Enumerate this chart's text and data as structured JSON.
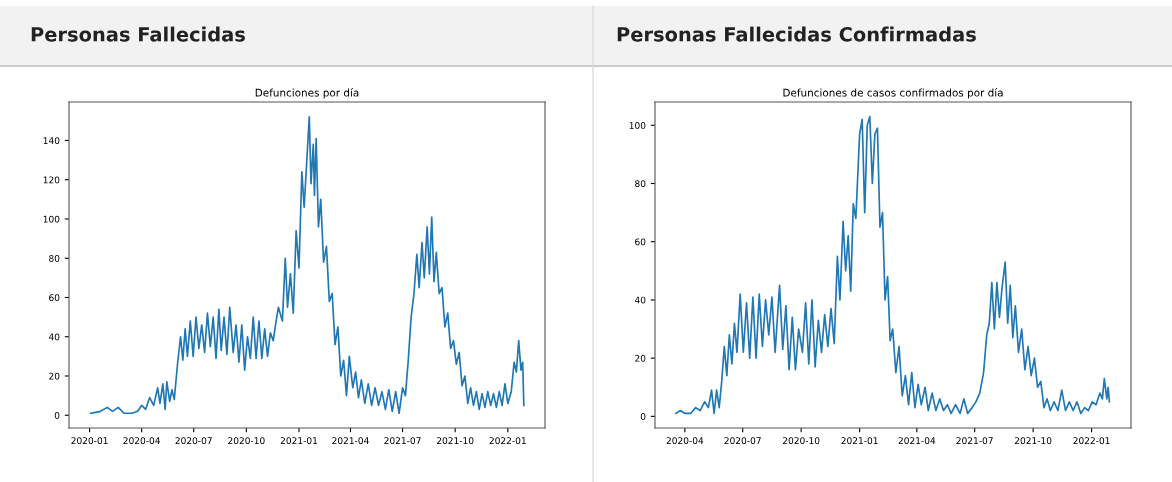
{
  "chart_data": [
    {
      "type": "line",
      "title": "Personas Fallecidas",
      "subtitle": "Defunciones por día",
      "grid": false,
      "marker": "none",
      "line_style": "solid",
      "xlim": [
        "2019-11-26",
        "2022-03-07"
      ],
      "ylim": [
        -6.5,
        159.6
      ],
      "xticks": [
        {
          "value": "2020-01-01",
          "label": "2020-01"
        },
        {
          "value": "2020-04-01",
          "label": "2020-04"
        },
        {
          "value": "2020-07-01",
          "label": "2020-07"
        },
        {
          "value": "2020-10-01",
          "label": "2020-10"
        },
        {
          "value": "2021-01-01",
          "label": "2021-01"
        },
        {
          "value": "2021-04-01",
          "label": "2021-04"
        },
        {
          "value": "2021-07-01",
          "label": "2021-07"
        },
        {
          "value": "2021-10-01",
          "label": "2021-10"
        },
        {
          "value": "2022-01-01",
          "label": "2022-01"
        }
      ],
      "yticks": [
        0,
        20,
        40,
        60,
        80,
        100,
        120,
        140
      ],
      "series": [
        {
          "color": "#1f77b4",
          "x": [
            "2020-01-03",
            "2020-01-20",
            "2020-02-01",
            "2020-02-10",
            "2020-02-20",
            "2020-03-01",
            "2020-03-15",
            "2020-03-25",
            "2020-04-01",
            "2020-04-08",
            "2020-04-15",
            "2020-04-22",
            "2020-04-29",
            "2020-05-03",
            "2020-05-08",
            "2020-05-12",
            "2020-05-15",
            "2020-05-20",
            "2020-05-24",
            "2020-05-28",
            "2020-06-03",
            "2020-06-08",
            "2020-06-12",
            "2020-06-16",
            "2020-06-20",
            "2020-06-25",
            "2020-06-30",
            "2020-07-05",
            "2020-07-10",
            "2020-07-15",
            "2020-07-20",
            "2020-07-25",
            "2020-07-30",
            "2020-08-04",
            "2020-08-09",
            "2020-08-14",
            "2020-08-18",
            "2020-08-23",
            "2020-08-28",
            "2020-09-02",
            "2020-09-08",
            "2020-09-13",
            "2020-09-18",
            "2020-09-23",
            "2020-09-28",
            "2020-10-03",
            "2020-10-08",
            "2020-10-13",
            "2020-10-18",
            "2020-10-23",
            "2020-10-28",
            "2020-11-02",
            "2020-11-07",
            "2020-11-12",
            "2020-11-17",
            "2020-11-22",
            "2020-11-26",
            "2020-12-03",
            "2020-12-08",
            "2020-12-12",
            "2020-12-17",
            "2020-12-22",
            "2020-12-27",
            "2021-01-01",
            "2021-01-06",
            "2021-01-10",
            "2021-01-19",
            "2021-01-22",
            "2021-01-26",
            "2021-01-28",
            "2021-01-31",
            "2021-02-04",
            "2021-02-08",
            "2021-02-13",
            "2021-02-18",
            "2021-02-23",
            "2021-02-28",
            "2021-03-05",
            "2021-03-10",
            "2021-03-15",
            "2021-03-20",
            "2021-03-25",
            "2021-03-30",
            "2021-04-05",
            "2021-04-10",
            "2021-04-15",
            "2021-04-20",
            "2021-04-26",
            "2021-05-02",
            "2021-05-08",
            "2021-05-14",
            "2021-05-20",
            "2021-05-26",
            "2021-06-01",
            "2021-06-07",
            "2021-06-13",
            "2021-06-19",
            "2021-06-25",
            "2021-07-01",
            "2021-07-06",
            "2021-07-11",
            "2021-07-16",
            "2021-07-21",
            "2021-07-26",
            "2021-07-30",
            "2021-08-04",
            "2021-08-08",
            "2021-08-13",
            "2021-08-17",
            "2021-08-21",
            "2021-08-25",
            "2021-08-29",
            "2021-09-03",
            "2021-09-08",
            "2021-09-13",
            "2021-09-18",
            "2021-09-23",
            "2021-09-28",
            "2021-10-03",
            "2021-10-08",
            "2021-10-13",
            "2021-10-18",
            "2021-10-23",
            "2021-10-28",
            "2021-11-02",
            "2021-11-07",
            "2021-11-12",
            "2021-11-17",
            "2021-11-22",
            "2021-11-27",
            "2021-12-02",
            "2021-12-07",
            "2021-12-12",
            "2021-12-17",
            "2021-12-22",
            "2021-12-27",
            "2022-01-01",
            "2022-01-07",
            "2022-01-12",
            "2022-01-16",
            "2022-01-20",
            "2022-01-24",
            "2022-01-27",
            "2022-01-29"
          ],
          "values": [
            1,
            2,
            4,
            2,
            4,
            1,
            1,
            2,
            5,
            3,
            9,
            5,
            14,
            6,
            16,
            3,
            17,
            7,
            13,
            8,
            27,
            40,
            28,
            44,
            30,
            48,
            30,
            50,
            34,
            46,
            32,
            52,
            35,
            50,
            29,
            54,
            33,
            50,
            31,
            55,
            32,
            46,
            27,
            46,
            23,
            40,
            29,
            50,
            29,
            48,
            29,
            44,
            30,
            42,
            38,
            48,
            55,
            48,
            80,
            55,
            72,
            52,
            94,
            75,
            124,
            106,
            152,
            118,
            138,
            112,
            141,
            96,
            110,
            78,
            86,
            58,
            62,
            36,
            45,
            20,
            28,
            10,
            30,
            14,
            22,
            9,
            18,
            6,
            16,
            5,
            14,
            5,
            12,
            3,
            13,
            2,
            12,
            1,
            14,
            10,
            28,
            50,
            62,
            82,
            65,
            88,
            70,
            96,
            72,
            101,
            68,
            83,
            62,
            65,
            45,
            52,
            34,
            38,
            26,
            32,
            15,
            20,
            6,
            14,
            5,
            12,
            3,
            11,
            4,
            12,
            5,
            11,
            4,
            12,
            5,
            16,
            6,
            12,
            27,
            22,
            38,
            23,
            27,
            5
          ]
        }
      ]
    },
    {
      "type": "line",
      "title": "Personas Fallecidas Confirmadas",
      "subtitle": "Defunciones de casos confirmados por día",
      "grid": false,
      "marker": "none",
      "line_style": "solid",
      "xlim": [
        "2020-02-14",
        "2022-03-04"
      ],
      "ylim": [
        -4,
        108
      ],
      "xticks": [
        {
          "value": "2020-04-01",
          "label": "2020-04"
        },
        {
          "value": "2020-07-01",
          "label": "2020-07"
        },
        {
          "value": "2020-10-01",
          "label": "2020-10"
        },
        {
          "value": "2021-01-01",
          "label": "2021-01"
        },
        {
          "value": "2021-04-01",
          "label": "2021-04"
        },
        {
          "value": "2021-07-01",
          "label": "2021-07"
        },
        {
          "value": "2021-10-01",
          "label": "2021-10"
        },
        {
          "value": "2022-01-01",
          "label": "2022-01"
        }
      ],
      "yticks": [
        0,
        20,
        40,
        60,
        80,
        100
      ],
      "series": [
        {
          "color": "#1f77b4",
          "x": [
            "2020-03-18",
            "2020-03-25",
            "2020-04-01",
            "2020-04-10",
            "2020-04-18",
            "2020-04-25",
            "2020-05-02",
            "2020-05-08",
            "2020-05-13",
            "2020-05-17",
            "2020-05-21",
            "2020-05-25",
            "2020-05-29",
            "2020-06-02",
            "2020-06-06",
            "2020-06-10",
            "2020-06-14",
            "2020-06-18",
            "2020-06-22",
            "2020-06-27",
            "2020-07-02",
            "2020-07-07",
            "2020-07-12",
            "2020-07-17",
            "2020-07-22",
            "2020-07-27",
            "2020-08-01",
            "2020-08-06",
            "2020-08-11",
            "2020-08-16",
            "2020-08-21",
            "2020-08-28",
            "2020-09-02",
            "2020-09-07",
            "2020-09-12",
            "2020-09-17",
            "2020-09-22",
            "2020-09-27",
            "2020-10-03",
            "2020-10-08",
            "2020-10-13",
            "2020-10-18",
            "2020-10-23",
            "2020-10-28",
            "2020-11-02",
            "2020-11-07",
            "2020-11-12",
            "2020-11-17",
            "2020-11-22",
            "2020-11-27",
            "2020-12-01",
            "2020-12-06",
            "2020-12-10",
            "2020-12-14",
            "2020-12-18",
            "2020-12-22",
            "2020-12-26",
            "2021-01-01",
            "2021-01-05",
            "2021-01-09",
            "2021-01-13",
            "2021-01-17",
            "2021-01-21",
            "2021-01-25",
            "2021-01-29",
            "2021-02-02",
            "2021-02-06",
            "2021-02-10",
            "2021-02-14",
            "2021-02-18",
            "2021-02-22",
            "2021-02-27",
            "2021-03-04",
            "2021-03-09",
            "2021-03-14",
            "2021-03-19",
            "2021-03-24",
            "2021-03-29",
            "2021-04-03",
            "2021-04-08",
            "2021-04-14",
            "2021-04-19",
            "2021-04-25",
            "2021-05-01",
            "2021-05-07",
            "2021-05-13",
            "2021-05-19",
            "2021-05-25",
            "2021-06-01",
            "2021-06-08",
            "2021-06-14",
            "2021-06-20",
            "2021-06-27",
            "2021-07-03",
            "2021-07-09",
            "2021-07-15",
            "2021-07-20",
            "2021-07-24",
            "2021-07-28",
            "2021-08-01",
            "2021-08-05",
            "2021-08-09",
            "2021-08-13",
            "2021-08-18",
            "2021-08-22",
            "2021-08-26",
            "2021-08-30",
            "2021-09-03",
            "2021-09-08",
            "2021-09-13",
            "2021-09-18",
            "2021-09-23",
            "2021-09-28",
            "2021-10-03",
            "2021-10-08",
            "2021-10-13",
            "2021-10-18",
            "2021-10-23",
            "2021-10-28",
            "2021-11-03",
            "2021-11-09",
            "2021-11-15",
            "2021-11-21",
            "2021-11-27",
            "2021-12-03",
            "2021-12-09",
            "2021-12-15",
            "2021-12-21",
            "2021-12-27",
            "2022-01-02",
            "2022-01-08",
            "2022-01-14",
            "2022-01-18",
            "2022-01-21",
            "2022-01-25",
            "2022-01-27",
            "2022-01-29"
          ],
          "values": [
            1,
            2,
            1,
            1,
            3,
            2,
            5,
            3,
            9,
            1,
            9,
            3,
            12,
            24,
            14,
            28,
            18,
            32,
            22,
            42,
            22,
            39,
            20,
            41,
            20,
            42,
            24,
            40,
            28,
            41,
            22,
            45,
            23,
            38,
            16,
            34,
            16,
            30,
            22,
            39,
            18,
            40,
            17,
            33,
            22,
            35,
            24,
            37,
            25,
            55,
            40,
            67,
            50,
            62,
            43,
            73,
            68,
            97,
            102,
            70,
            100,
            103,
            80,
            97,
            99,
            65,
            70,
            40,
            48,
            26,
            30,
            15,
            24,
            7,
            14,
            4,
            15,
            3,
            11,
            4,
            10,
            2,
            8,
            2,
            6,
            2,
            4,
            1,
            4,
            1,
            6,
            1,
            3,
            5,
            8,
            15,
            28,
            32,
            46,
            30,
            46,
            34,
            44,
            53,
            32,
            45,
            27,
            38,
            22,
            30,
            16,
            24,
            14,
            20,
            10,
            12,
            3,
            6,
            2,
            5,
            2,
            9,
            2,
            5,
            2,
            5,
            1,
            3,
            2,
            5,
            4,
            8,
            6,
            13,
            6,
            10,
            5
          ]
        }
      ]
    }
  ]
}
